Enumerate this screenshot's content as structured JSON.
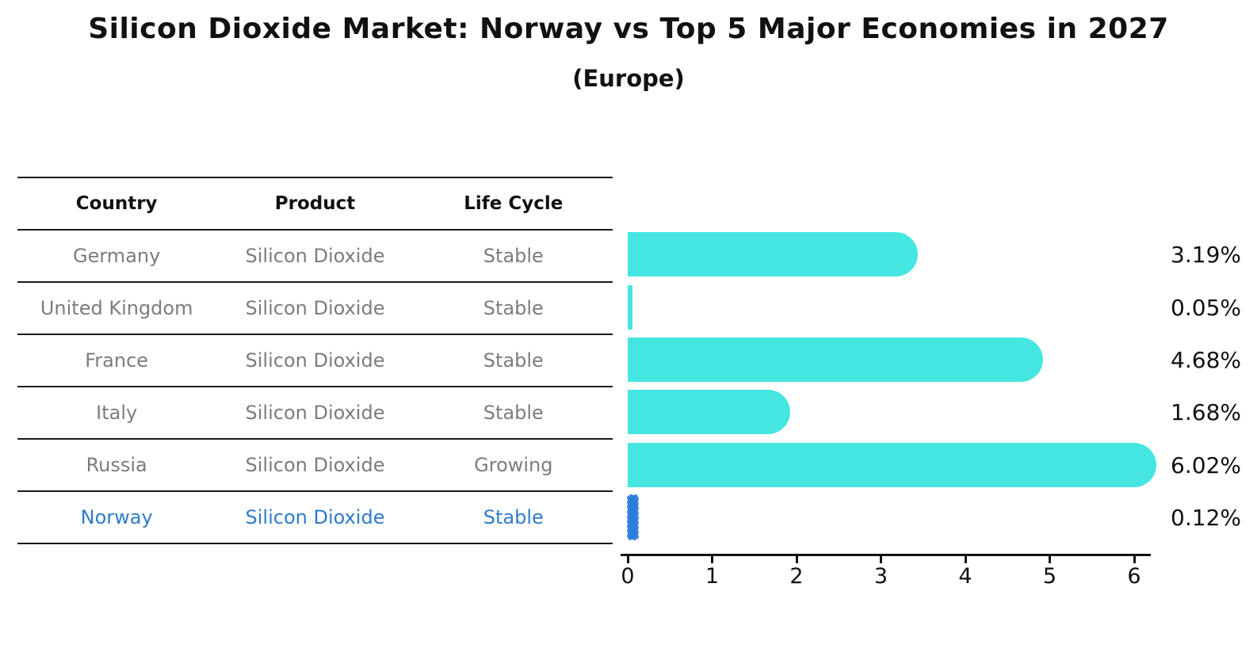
{
  "title": "Silicon Dioxide Market: Norway vs Top 5 Major Economies in 2027",
  "subtitle": "(Europe)",
  "table": {
    "headers": [
      "Country",
      "Product",
      "Life Cycle"
    ],
    "rows": [
      {
        "country": "Germany",
        "product": "Silicon Dioxide",
        "life_cycle": "Stable",
        "highlight": false
      },
      {
        "country": "United Kingdom",
        "product": "Silicon Dioxide",
        "life_cycle": "Stable",
        "highlight": false
      },
      {
        "country": "France",
        "product": "Silicon Dioxide",
        "life_cycle": "Stable",
        "highlight": false
      },
      {
        "country": "Italy",
        "product": "Silicon Dioxide",
        "life_cycle": "Stable",
        "highlight": false
      },
      {
        "country": "Russia",
        "product": "Silicon Dioxide",
        "life_cycle": "Growing",
        "highlight": false
      },
      {
        "country": "Norway",
        "product": "Silicon Dioxide",
        "life_cycle": "Stable",
        "highlight": true
      }
    ]
  },
  "chart_data": {
    "type": "bar",
    "orientation": "horizontal",
    "title": "Silicon Dioxide Market: Norway vs Top 5 Major Economies in 2027",
    "subtitle": "(Europe)",
    "categories": [
      "Germany",
      "United Kingdom",
      "France",
      "Italy",
      "Russia",
      "Norway"
    ],
    "values": [
      3.19,
      0.05,
      4.68,
      1.68,
      6.02,
      0.12
    ],
    "value_labels": [
      "3.19%",
      "0.05%",
      "4.68%",
      "1.68%",
      "6.02%",
      "0.12%"
    ],
    "highlight_index": 5,
    "xlabel": "",
    "ylabel": "",
    "xticks": [
      0,
      1,
      2,
      3,
      4,
      5,
      6
    ],
    "xlim": [
      0,
      6.3
    ],
    "grid": false,
    "legend": false,
    "colors": {
      "bar": "#45e6e1",
      "highlight_bar": "#2c7cdc",
      "highlight_text": "#2e7bcc",
      "table_text": "#7c7c7c",
      "header_text": "#111111",
      "line": "#1a1a1a"
    }
  }
}
